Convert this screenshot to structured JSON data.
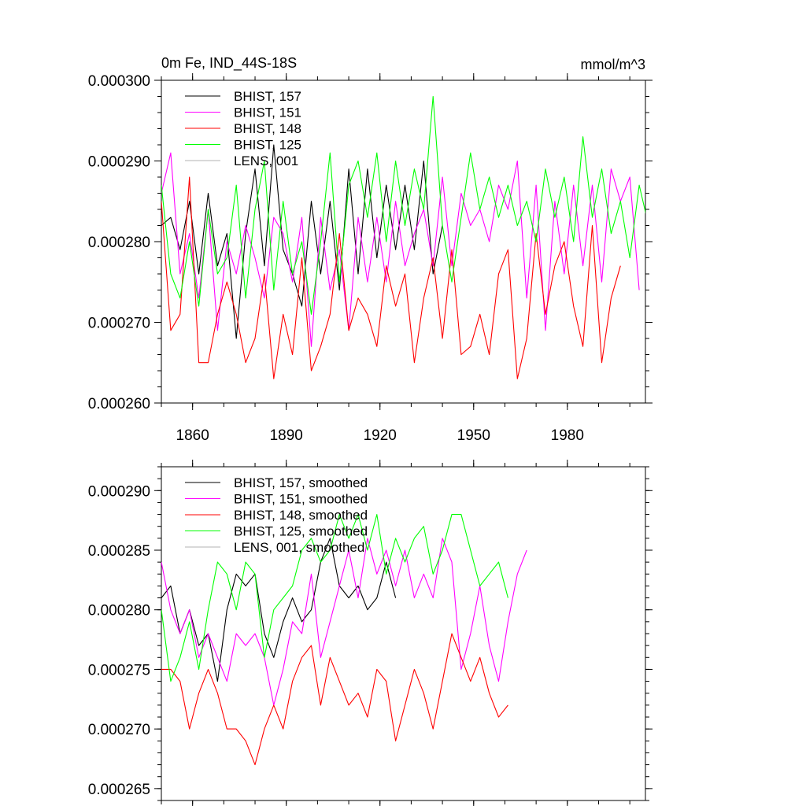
{
  "chart_data": [
    {
      "type": "line",
      "title": "0m Fe, IND_44S-18S",
      "units": "mmol/m^3",
      "xlim": [
        1850,
        2005
      ],
      "ylim": [
        0.00026,
        0.0003
      ],
      "yticks": [
        {
          "value": 0.00026,
          "label": "0.000260"
        },
        {
          "value": 0.00027,
          "label": "0.000270"
        },
        {
          "value": 0.00028,
          "label": "0.000280"
        },
        {
          "value": 0.00029,
          "label": "0.000290"
        },
        {
          "value": 0.0003,
          "label": "0.000300"
        }
      ],
      "xticks": [
        {
          "value": 1860,
          "label": "1860"
        },
        {
          "value": 1890,
          "label": "1890"
        },
        {
          "value": 1920,
          "label": "1920"
        },
        {
          "value": 1950,
          "label": "1950"
        },
        {
          "value": 1980,
          "label": "1980"
        }
      ],
      "series": [
        {
          "name": "BHIST, 157",
          "color": "#000000",
          "x_start": 1850,
          "x_step": 3,
          "values": [
            0.000282,
            0.000283,
            0.000279,
            0.000285,
            0.000276,
            0.000286,
            0.000277,
            0.000281,
            0.000268,
            0.000281,
            0.000289,
            0.000277,
            0.000292,
            0.000279,
            0.000276,
            0.000272,
            0.000285,
            0.000276,
            0.000285,
            0.000274,
            0.000289,
            0.000276,
            0.000289,
            0.000278,
            0.000287,
            0.000279,
            0.000287,
            0.000279,
            0.00029,
            0.000276,
            0.000282
          ]
        },
        {
          "name": "BHIST, 151",
          "color": "#ff00ff",
          "x_start": 1850,
          "x_step": 3,
          "values": [
            0.000286,
            0.000291,
            0.000276,
            0.000281,
            0.000273,
            0.000284,
            0.000269,
            0.00028,
            0.000276,
            0.000282,
            0.000278,
            0.000273,
            0.000283,
            0.000281,
            0.000275,
            0.000283,
            0.000267,
            0.000283,
            0.000274,
            0.000279,
            0.000269,
            0.000283,
            0.000275,
            0.000283,
            0.000275,
            0.000285,
            0.000277,
            0.000281,
            0.000284,
            0.000277,
            0.000288,
            0.000277,
            0.000286,
            0.000282,
            0.000284,
            0.00028,
            0.000287,
            0.000284,
            0.00029,
            0.000273,
            0.000287,
            0.000269,
            0.000285,
            0.000276,
            0.000287,
            0.000277,
            0.000287,
            0.000275,
            0.000289,
            0.000285,
            0.000288,
            0.000274
          ]
        },
        {
          "name": "BHIST, 148",
          "color": "#ff0000",
          "x_start": 1850,
          "x_step": 3,
          "values": [
            0.000285,
            0.000269,
            0.000271,
            0.000288,
            0.000265,
            0.000265,
            0.000271,
            0.000275,
            0.000271,
            0.000265,
            0.000268,
            0.000276,
            0.000263,
            0.000271,
            0.000266,
            0.000278,
            0.000264,
            0.000267,
            0.000271,
            0.000281,
            0.000269,
            0.000273,
            0.000271,
            0.000267,
            0.000277,
            0.000272,
            0.000276,
            0.000265,
            0.000273,
            0.000278,
            0.000268,
            0.000279,
            0.000266,
            0.000267,
            0.000271,
            0.000266,
            0.000276,
            0.000279,
            0.000263,
            0.000268,
            0.000281,
            0.000271,
            0.000277,
            0.00028,
            0.000272,
            0.000267,
            0.000282,
            0.000265,
            0.000273,
            0.000277
          ]
        },
        {
          "name": "BHIST, 125",
          "color": "#00ff00",
          "x_start": 1850,
          "x_step": 3,
          "values": [
            0.000287,
            0.000276,
            0.000273,
            0.00028,
            0.000272,
            0.000284,
            0.000276,
            0.000278,
            0.000287,
            0.000273,
            0.000284,
            0.00029,
            0.000274,
            0.000285,
            0.000276,
            0.00028,
            0.000271,
            0.00028,
            0.000291,
            0.000275,
            0.000287,
            0.00029,
            0.000283,
            0.000291,
            0.00028,
            0.00029,
            0.000282,
            0.000289,
            0.000284,
            0.000298,
            0.000282,
            0.000275,
            0.000283,
            0.000291,
            0.000284,
            0.000288,
            0.000283,
            0.000287,
            0.000282,
            0.000285,
            0.00028,
            0.000289,
            0.000283,
            0.000288,
            0.00028,
            0.000293,
            0.000283,
            0.000289,
            0.000281,
            0.000285,
            0.000278,
            0.000287,
            0.000282,
            0.000284
          ]
        },
        {
          "name": "LENS, 001",
          "color": "#b3b3b3",
          "x_start": 1850,
          "x_step": 3,
          "values": []
        }
      ]
    },
    {
      "type": "line",
      "xlim": [
        1850,
        2005
      ],
      "ylim": [
        0.000264,
        0.000292
      ],
      "yticks": [
        {
          "value": 0.000265,
          "label": "0.000265"
        },
        {
          "value": 0.00027,
          "label": "0.000270"
        },
        {
          "value": 0.000275,
          "label": "0.000275"
        },
        {
          "value": 0.00028,
          "label": "0.000280"
        },
        {
          "value": 0.000285,
          "label": "0.000285"
        },
        {
          "value": 0.00029,
          "label": "0.000290"
        }
      ],
      "xticks": [
        {
          "value": 1860,
          "label": ""
        },
        {
          "value": 1890,
          "label": ""
        },
        {
          "value": 1920,
          "label": ""
        },
        {
          "value": 1950,
          "label": ""
        },
        {
          "value": 1980,
          "label": ""
        }
      ],
      "series": [
        {
          "name": "BHIST, 157, smoothed",
          "color": "#000000",
          "x_start": 1850,
          "x_step": 3,
          "values": [
            0.000281,
            0.000282,
            0.000278,
            0.00028,
            0.000277,
            0.000278,
            0.000274,
            0.00028,
            0.000283,
            0.000282,
            0.000283,
            0.000278,
            0.000276,
            0.000279,
            0.000281,
            0.000279,
            0.00028,
            0.000284,
            0.000286,
            0.000282,
            0.000281,
            0.000282,
            0.00028,
            0.000281,
            0.000284,
            0.000281
          ]
        },
        {
          "name": "BHIST, 151, smoothed",
          "color": "#ff00ff",
          "x_start": 1850,
          "x_step": 3,
          "values": [
            0.000284,
            0.00028,
            0.000278,
            0.00028,
            0.000276,
            0.000278,
            0.000276,
            0.000274,
            0.000278,
            0.000277,
            0.000278,
            0.000276,
            0.000272,
            0.000275,
            0.000279,
            0.000278,
            0.000283,
            0.000276,
            0.000279,
            0.000282,
            0.000285,
            0.000281,
            0.000286,
            0.000283,
            0.000285,
            0.000282,
            0.000285,
            0.000281,
            0.000283,
            0.000281,
            0.000286,
            0.000284,
            0.000275,
            0.000278,
            0.000282,
            0.000277,
            0.000274,
            0.000279,
            0.000283,
            0.000285
          ]
        },
        {
          "name": "BHIST, 148, smoothed",
          "color": "#ff0000",
          "x_start": 1850,
          "x_step": 3,
          "values": [
            0.000275,
            0.000275,
            0.000274,
            0.00027,
            0.000273,
            0.000275,
            0.000273,
            0.00027,
            0.00027,
            0.000269,
            0.000267,
            0.00027,
            0.000272,
            0.00027,
            0.000274,
            0.000276,
            0.000277,
            0.000272,
            0.000276,
            0.000274,
            0.000272,
            0.000273,
            0.000271,
            0.000275,
            0.000274,
            0.000269,
            0.000272,
            0.000275,
            0.000273,
            0.00027,
            0.000274,
            0.000278,
            0.000276,
            0.000274,
            0.000276,
            0.000273,
            0.000271,
            0.000272
          ]
        },
        {
          "name": "BHIST, 125, smoothed",
          "color": "#00ff00",
          "x_start": 1850,
          "x_step": 3,
          "values": [
            0.00028,
            0.000274,
            0.000276,
            0.000279,
            0.000275,
            0.00028,
            0.000284,
            0.000283,
            0.00028,
            0.000284,
            0.000283,
            0.000276,
            0.00028,
            0.000281,
            0.000282,
            0.000285,
            0.000286,
            0.000284,
            0.000285,
            0.000288,
            0.000286,
            0.000288,
            0.000285,
            0.000288,
            0.000283,
            0.000286,
            0.000284,
            0.000286,
            0.000287,
            0.000283,
            0.000285,
            0.000288,
            0.000288,
            0.000285,
            0.000282,
            0.000283,
            0.000284,
            0.000281
          ]
        },
        {
          "name": "LENS, 001, smoothed",
          "color": "#b3b3b3",
          "x_start": 1850,
          "x_step": 3,
          "values": []
        }
      ]
    }
  ]
}
